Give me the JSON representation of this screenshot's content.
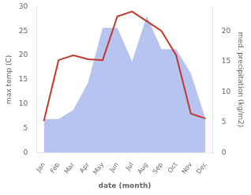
{
  "chart_data": {
    "type": "line",
    "categories": [
      "Jan",
      "Feb",
      "Mar",
      "Apr",
      "May",
      "Jun",
      "Jul",
      "Aug",
      "Sep",
      "Oct",
      "Nov",
      "Dec"
    ],
    "series": [
      {
        "type": "area",
        "axis": "y2",
        "color": "#b8c4f0",
        "values": [
          5.5,
          5.5,
          7.0,
          11.5,
          20.5,
          20.5,
          15.0,
          22.5,
          17.0,
          17.0,
          13.0,
          5.5
        ]
      },
      {
        "type": "line",
        "color": "#c0392b",
        "values": [
          6.5,
          19.0,
          20.0,
          19.2,
          19.0,
          28.0,
          29.0,
          27.0,
          25.0,
          20.0,
          8.0,
          7.0
        ]
      }
    ],
    "xlabel": "date (month)",
    "ylabel": "max temp (C)",
    "y2label": "med. precipitation (kg/m2)",
    "ylim": [
      0,
      30
    ],
    "yticks": [
      0,
      5,
      10,
      15,
      20,
      25,
      30
    ],
    "y2lim": [
      0,
      24
    ],
    "y2ticks": [
      0,
      5,
      10,
      15,
      20
    ],
    "grid": false
  }
}
